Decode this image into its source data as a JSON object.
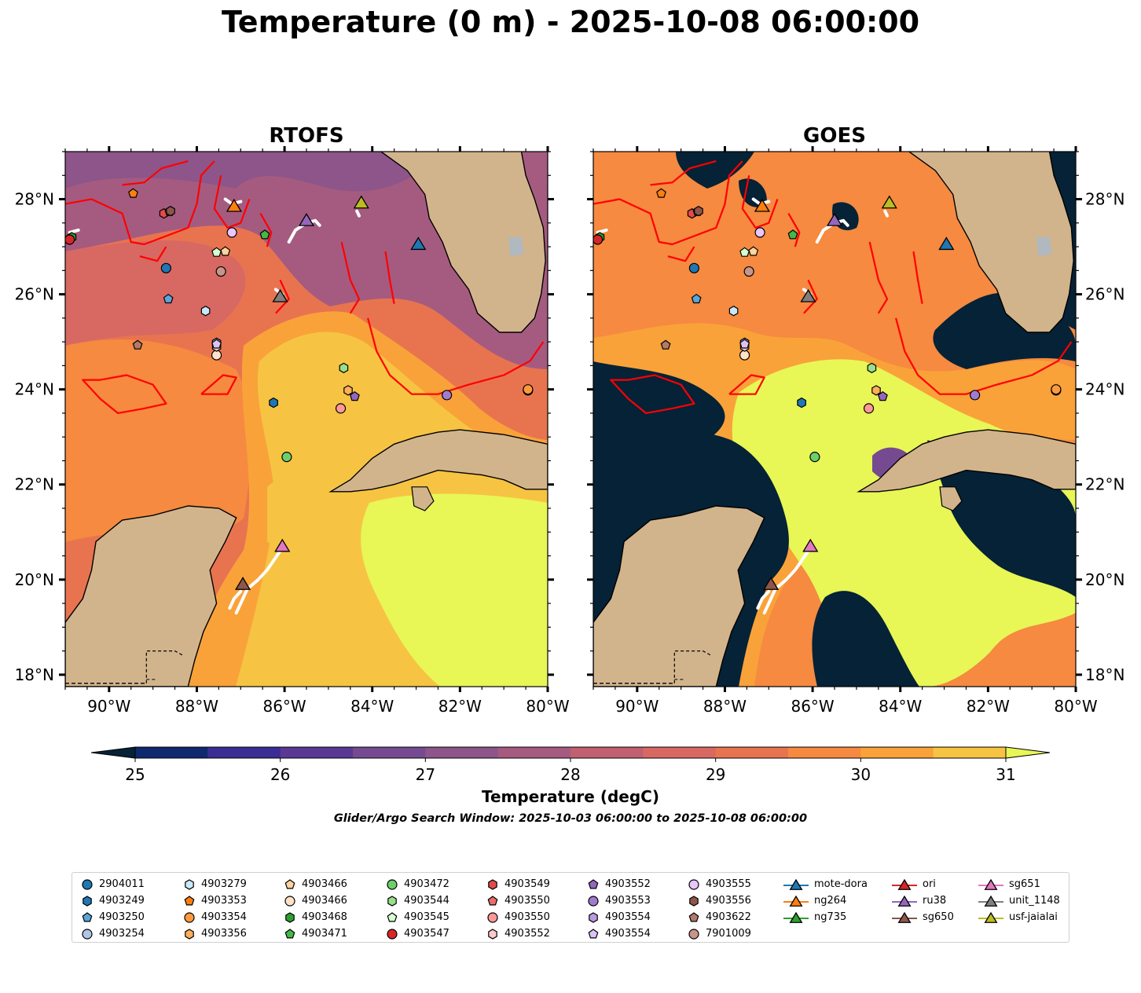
{
  "title": "Temperature (0 m) - 2025-10-08 06:00:00",
  "panels": [
    {
      "title": "RTOFS",
      "kind": "model"
    },
    {
      "title": "GOES",
      "kind": "satellite"
    }
  ],
  "map_extent": {
    "lon": [
      -91,
      -80
    ],
    "lat": [
      17.75,
      29
    ]
  },
  "x_ticks": [
    "90°W",
    "88°W",
    "86°W",
    "84°W",
    "82°W",
    "80°W"
  ],
  "y_ticks": [
    "18°N",
    "20°N",
    "22°N",
    "24°N",
    "26°N",
    "28°N"
  ],
  "colorbar": {
    "label": "Temperature (degC)",
    "ticks": [
      "25",
      "26",
      "27",
      "28",
      "29",
      "30",
      "31"
    ],
    "range": [
      25,
      31
    ],
    "step": 0.5,
    "extend": "both",
    "colors": [
      "#052236",
      "#10296e",
      "#3a2d94",
      "#5a3994",
      "#764a90",
      "#8d558a",
      "#a55b80",
      "#c06070",
      "#d86862",
      "#e8744f",
      "#f58a40",
      "#f9a23a",
      "#f6c442",
      "#e8f656"
    ]
  },
  "search_window": "Glider/Argo Search Window: 2025-10-03 06:00:00 to 2025-10-08 06:00:00",
  "colors": {
    "land": "#d2b48c",
    "front": "#ff0000",
    "track": "#ffffff",
    "cloud": "#052236",
    "lake": "#b0b8c0"
  },
  "floats": [
    {
      "id": "2904011",
      "marker": "circle",
      "color": "#1f77b4",
      "lon": -88.7,
      "lat": 26.55
    },
    {
      "id": "4903249",
      "marker": "hexagon",
      "color": "#1f77b4",
      "lon": -86.25,
      "lat": 23.72
    },
    {
      "id": "4903250",
      "marker": "pentagon",
      "color": "#5aa5dc",
      "lon": -88.65,
      "lat": 25.9
    },
    {
      "id": "4903254",
      "marker": "circle",
      "color": "#aec7e8",
      "lon": -80.45,
      "lat": 23.98
    },
    {
      "id": "4903279",
      "marker": "hexagon",
      "color": "#c9e8fb",
      "lon": -87.8,
      "lat": 25.65
    },
    {
      "id": "4903353",
      "marker": "pentagon",
      "color": "#ff7f0e",
      "lon": -89.45,
      "lat": 28.12
    },
    {
      "id": "4903354",
      "marker": "circle",
      "color": "#ff9a3c",
      "lon": -80.45,
      "lat": 24.0
    },
    {
      "id": "4903356",
      "marker": "hexagon",
      "color": "#ffae5a",
      "lon": -84.55,
      "lat": 23.98
    },
    {
      "id": "4903466",
      "marker": "pentagon",
      "color": "#ffd39b",
      "lon": -87.35,
      "lat": 26.9
    },
    {
      "id": "4903466",
      "marker": "circle",
      "color": "#ffe2c7",
      "lon": -87.55,
      "lat": 24.72
    },
    {
      "id": "4903468",
      "marker": "hexagon",
      "color": "#2ca02c",
      "lon": -90.85,
      "lat": 27.2
    },
    {
      "id": "4903471",
      "marker": "pentagon",
      "color": "#45b845",
      "lon": -86.45,
      "lat": 27.25
    },
    {
      "id": "4903472",
      "marker": "circle",
      "color": "#6ccf6c",
      "lon": -85.95,
      "lat": 22.58
    },
    {
      "id": "4903544",
      "marker": "hexagon",
      "color": "#98df8a",
      "lon": -84.65,
      "lat": 24.45
    },
    {
      "id": "4903545",
      "marker": "pentagon",
      "color": "#d6ffd0",
      "lon": -87.55,
      "lat": 26.88
    },
    {
      "id": "4903547",
      "marker": "circle",
      "color": "#d62728",
      "lon": -90.9,
      "lat": 27.15
    },
    {
      "id": "4903549",
      "marker": "hexagon",
      "color": "#e14b4b",
      "lon": -88.75,
      "lat": 27.7
    },
    {
      "id": "4903550",
      "marker": "pentagon",
      "color": "#ec6b6b",
      "lon": -88.62,
      "lat": 27.74
    },
    {
      "id": "4903550",
      "marker": "circle",
      "color": "#ff9896",
      "lon": -84.72,
      "lat": 23.6
    },
    {
      "id": "4903552",
      "marker": "hexagon",
      "color": "#ffc9c9",
      "lon": -87.55,
      "lat": 24.9
    },
    {
      "id": "4903552",
      "marker": "pentagon",
      "color": "#9467bd",
      "lon": -84.4,
      "lat": 23.85
    },
    {
      "id": "4903553",
      "marker": "circle",
      "color": "#a17ccd",
      "lon": -82.3,
      "lat": 23.88
    },
    {
      "id": "4903554",
      "marker": "hexagon",
      "color": "#b89ae0",
      "lon": -87.55,
      "lat": 24.98
    },
    {
      "id": "4903554",
      "marker": "pentagon",
      "color": "#dac4f2",
      "lon": -87.55,
      "lat": 24.95
    },
    {
      "id": "4903555",
      "marker": "circle",
      "color": "#e8c6ff",
      "lon": -87.2,
      "lat": 27.3
    },
    {
      "id": "4903556",
      "marker": "hexagon",
      "color": "#8c564b",
      "lon": -88.6,
      "lat": 27.75
    },
    {
      "id": "4903622",
      "marker": "pentagon",
      "color": "#b07a6c",
      "lon": -89.35,
      "lat": 24.93
    },
    {
      "id": "7901009",
      "marker": "circle",
      "color": "#c7958a",
      "lon": -87.45,
      "lat": 26.48
    }
  ],
  "gliders": [
    {
      "id": "mote-dora",
      "color": "#1f77b4",
      "lon": -82.95,
      "lat": 27.05
    },
    {
      "id": "ng264",
      "color": "#ff7f0e",
      "lon": -87.15,
      "lat": 27.85
    },
    {
      "id": "ng735",
      "color": "#2ca02c",
      "lon": null,
      "lat": null
    },
    {
      "id": "ori",
      "color": "#d62728",
      "lon": null,
      "lat": null
    },
    {
      "id": "ru38",
      "color": "#9467bd",
      "lon": -85.5,
      "lat": 27.55
    },
    {
      "id": "sg650",
      "color": "#8c564b",
      "lon": -86.95,
      "lat": 19.9
    },
    {
      "id": "sg651",
      "color": "#e377c2",
      "lon": -86.05,
      "lat": 20.7
    },
    {
      "id": "unit_1148",
      "color": "#7f7f7f",
      "lon": -86.1,
      "lat": 25.95
    },
    {
      "id": "usf-jaialai",
      "color": "#bcbd22",
      "lon": -84.25,
      "lat": 27.92
    }
  ],
  "legend": {
    "columns": [
      [
        0,
        1,
        2,
        3
      ],
      [
        4,
        5,
        6,
        7
      ],
      [
        8,
        9,
        10,
        11
      ],
      [
        12,
        13,
        14,
        15
      ],
      [
        16,
        17,
        18,
        19
      ],
      [
        20,
        21,
        22,
        23
      ],
      [
        24,
        25,
        26,
        27
      ]
    ],
    "glider_columns": [
      [
        0,
        1,
        2
      ],
      [
        3,
        4,
        5
      ],
      [
        6,
        7,
        8
      ]
    ]
  }
}
